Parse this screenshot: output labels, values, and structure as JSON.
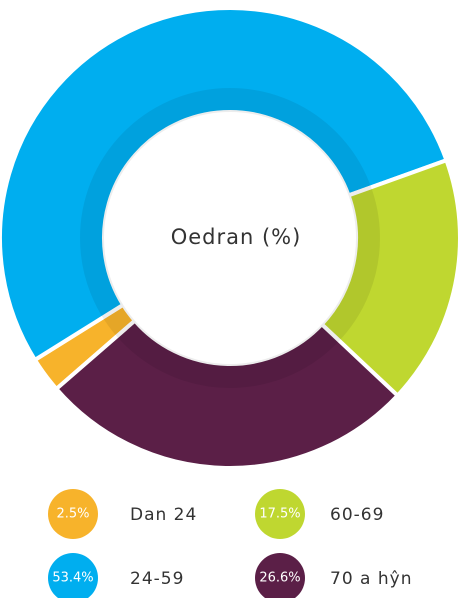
{
  "chart_data": {
    "type": "donut",
    "title": "Oedran (%)",
    "categories": [
      "Dan 24",
      "24-59",
      "60-69",
      "70 a hŷn"
    ],
    "values": [
      2.5,
      53.4,
      17.5,
      26.6
    ],
    "value_labels": [
      "2.5%",
      "53.4%",
      "17.5%",
      "26.6%"
    ],
    "colors": [
      "#f7b32b",
      "#00aeef",
      "#bfd730",
      "#5b1f47"
    ],
    "legend": "bottom"
  }
}
